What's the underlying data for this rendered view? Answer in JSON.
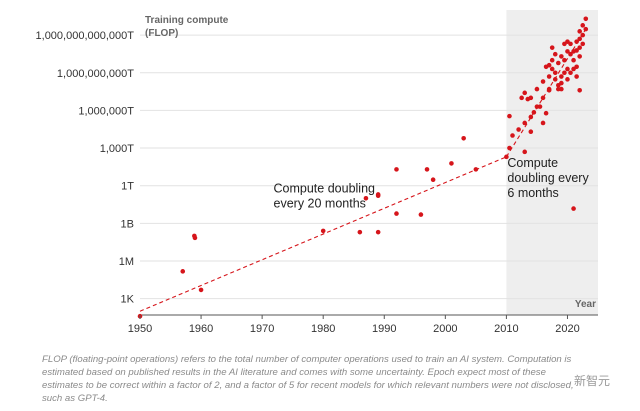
{
  "chart_data": {
    "type": "scatter",
    "title": "",
    "ylabel": "Training compute\n(FLOP)",
    "xlabel": "Year",
    "y_scale": "log",
    "y_ticks": [
      {
        "label": "1K",
        "flop": 1000.0
      },
      {
        "label": "1M",
        "flop": 1000000.0
      },
      {
        "label": "1B",
        "flop": 1000000000.0
      },
      {
        "label": "1T",
        "flop": 1000000000000.0
      },
      {
        "label": "1,000T",
        "flop": 1000000000000000.0
      },
      {
        "label": "1,000,000T",
        "flop": 1e+18
      },
      {
        "label": "1,000,000,000T",
        "flop": 1e+21
      },
      {
        "label": "1,000,000,000,000T",
        "flop": 1e+24
      }
    ],
    "x_ticks": [
      1950,
      1960,
      1970,
      1980,
      1990,
      2000,
      2010,
      2020
    ],
    "xlim": [
      1950,
      2025
    ],
    "ylim_flop": [
      50.0,
      1e+26
    ],
    "shaded_region": {
      "from_year": 2010,
      "to_year": 2025,
      "color": "#eeeeee"
    },
    "trend_lines": [
      {
        "name": "Compute doubling every 20 months",
        "from": [
          1950,
          100.0
        ],
        "to": [
          2010,
          200000000000000.0
        ]
      },
      {
        "name": "Compute doubling every 6 months",
        "from": [
          2010,
          200000000000000.0
        ],
        "to": [
          2023,
          3e+24
        ]
      }
    ],
    "annotations": [
      {
        "text": [
          "Compute doubling",
          "every  20 months"
        ],
        "at_year": 1983,
        "at_flop": 300000000000.0
      },
      {
        "text": [
          "Compute",
          "doubling every",
          "6 months"
        ],
        "at_year": 2010,
        "at_flop": 30000000000000.0
      }
    ],
    "point_color": "#d6151b",
    "points": [
      {
        "x": 1950.0,
        "y": 40
      },
      {
        "x": 1957.0,
        "y": 150000.0
      },
      {
        "x": 1958.9,
        "y": 100000000.0
      },
      {
        "x": 1959.0,
        "y": 70000000.0
      },
      {
        "x": 1960.0,
        "y": 5000.0
      },
      {
        "x": 1980.0,
        "y": 250000000.0
      },
      {
        "x": 1986.0,
        "y": 200000000.0
      },
      {
        "x": 1987.0,
        "y": 100000000000.0
      },
      {
        "x": 1989.0,
        "y": 200000000000.0
      },
      {
        "x": 1989.0,
        "y": 200000000.0
      },
      {
        "x": 1989.0,
        "y": 160000000000.0
      },
      {
        "x": 1992.0,
        "y": 20000000000000.0
      },
      {
        "x": 1992.0,
        "y": 6000000000.0
      },
      {
        "x": 1996.0,
        "y": 5000000000.0
      },
      {
        "x": 1997.0,
        "y": 20000000000000.0
      },
      {
        "x": 1998.0,
        "y": 3000000000000.0
      },
      {
        "x": 2001.0,
        "y": 60000000000000.0
      },
      {
        "x": 2003.0,
        "y": 6000000000000000.0
      },
      {
        "x": 2005.0,
        "y": 20000000000000.0
      },
      {
        "x": 2010.0,
        "y": 200000000000000.0
      },
      {
        "x": 2010.5,
        "y": 1000000000000000.0
      },
      {
        "x": 2010.5,
        "y": 3.5e+17
      },
      {
        "x": 2011.0,
        "y": 1e+16
      },
      {
        "x": 2012.0,
        "y": 3e+16
      },
      {
        "x": 2012.5,
        "y": 1e+19
      },
      {
        "x": 2013.0,
        "y": 2.5e+19
      },
      {
        "x": 2013.0,
        "y": 1e+17
      },
      {
        "x": 2013.0,
        "y": 500000000000000.0
      },
      {
        "x": 2013.5,
        "y": 8e+18
      },
      {
        "x": 2014.0,
        "y": 3e+17
      },
      {
        "x": 2014.0,
        "y": 2e+16
      },
      {
        "x": 2014.0,
        "y": 1e+19
      },
      {
        "x": 2014.5,
        "y": 7e+17
      },
      {
        "x": 2015.0,
        "y": 5e+19
      },
      {
        "x": 2015.0,
        "y": 2e+18
      },
      {
        "x": 2015.5,
        "y": 2e+18
      },
      {
        "x": 2016.0,
        "y": 2e+20
      },
      {
        "x": 2016.0,
        "y": 1e+19
      },
      {
        "x": 2016.0,
        "y": 1e+17
      },
      {
        "x": 2016.5,
        "y": 6e+17
      },
      {
        "x": 2016.5,
        "y": 3e+21
      },
      {
        "x": 2017.0,
        "y": 4e+21
      },
      {
        "x": 2017.0,
        "y": 5e+20
      },
      {
        "x": 2017.0,
        "y": 5e+19
      },
      {
        "x": 2017.0,
        "y": 4e+19
      },
      {
        "x": 2017.5,
        "y": 1e+22
      },
      {
        "x": 2017.5,
        "y": 1e+23
      },
      {
        "x": 2017.5,
        "y": 2e+21
      },
      {
        "x": 2018.0,
        "y": 3e+22
      },
      {
        "x": 2018.0,
        "y": 1e+21
      },
      {
        "x": 2018.0,
        "y": 3e+20
      },
      {
        "x": 2018.5,
        "y": 1e+20
      },
      {
        "x": 2018.5,
        "y": 5e+19
      },
      {
        "x": 2018.5,
        "y": 6e+21
      },
      {
        "x": 2019.0,
        "y": 2e+22
      },
      {
        "x": 2019.0,
        "y": 5e+20
      },
      {
        "x": 2019.0,
        "y": 1.5e+20
      },
      {
        "x": 2019.0,
        "y": 5e+19
      },
      {
        "x": 2019.5,
        "y": 2e+23
      },
      {
        "x": 2019.5,
        "y": 1e+22
      },
      {
        "x": 2019.5,
        "y": 1e+21
      },
      {
        "x": 2020.0,
        "y": 3e+23
      },
      {
        "x": 2020.0,
        "y": 5e+22
      },
      {
        "x": 2020.0,
        "y": 2e+21
      },
      {
        "x": 2020.0,
        "y": 3e+20
      },
      {
        "x": 2020.5,
        "y": 2e+23
      },
      {
        "x": 2020.5,
        "y": 3e+22
      },
      {
        "x": 2020.5,
        "y": 1e+21
      },
      {
        "x": 2021.0,
        "y": 5e+22
      },
      {
        "x": 2021.0,
        "y": 1e+22
      },
      {
        "x": 2021.0,
        "y": 2e+21
      },
      {
        "x": 2021.0,
        "y": 15000000000.0
      },
      {
        "x": 2021.5,
        "y": 3e+23
      },
      {
        "x": 2021.5,
        "y": 6e+22
      },
      {
        "x": 2021.5,
        "y": 3e+21
      },
      {
        "x": 2021.5,
        "y": 5e+20
      },
      {
        "x": 2022.0,
        "y": 2e+24
      },
      {
        "x": 2022.0,
        "y": 5e+23
      },
      {
        "x": 2022.0,
        "y": 1e+23
      },
      {
        "x": 2022.0,
        "y": 2e+22
      },
      {
        "x": 2022.0,
        "y": 4e+19
      },
      {
        "x": 2022.5,
        "y": 6e+24
      },
      {
        "x": 2022.5,
        "y": 1e+24
      },
      {
        "x": 2022.5,
        "y": 2e+23
      },
      {
        "x": 2023.0,
        "y": 2e+25
      },
      {
        "x": 2023.0,
        "y": 3e+24
      }
    ]
  },
  "footnote": "FLOP (floating-point operations) refers to the total number of computer operations used to train an AI system. Computation is estimated based on published results in the AI literature and comes with some uncertainty. Epoch expect most of these estimates to be correct within a factor of 2, and a factor of 5 for recent models for which relevant numbers were not disclosed, such as GPT-4.",
  "watermark": "新智元"
}
